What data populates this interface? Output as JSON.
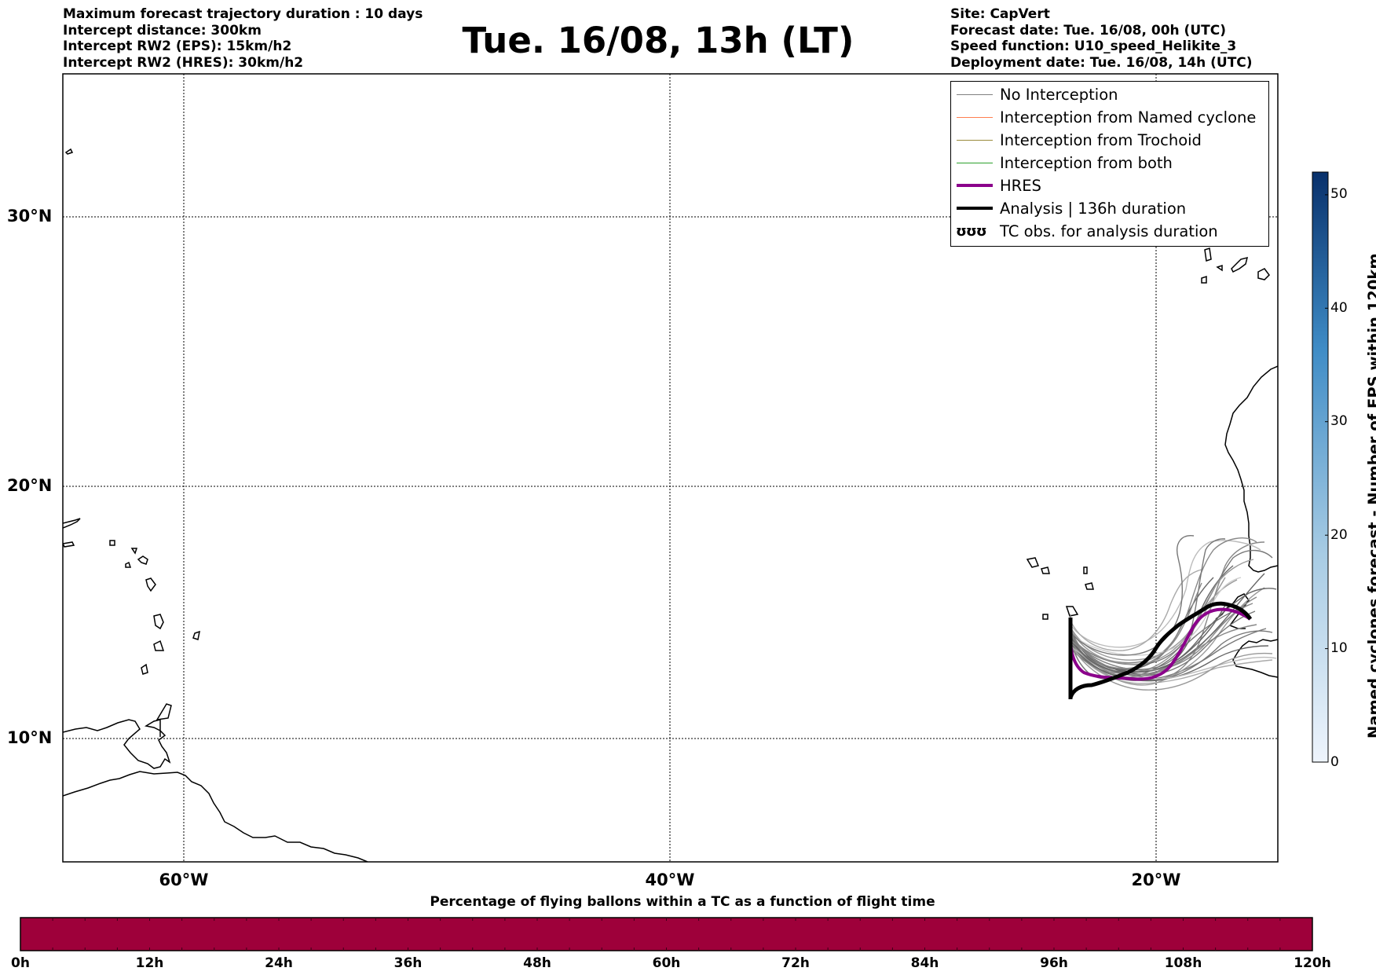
{
  "header_left": [
    "Maximum forecast trajectory duration : 10 days",
    "Intercept distance: 300km",
    "Intercept RW2 (EPS):  15km/h2",
    "Intercept RW2 (HRES): 30km/h2"
  ],
  "title": "Tue. 16/08, 13h (LT)",
  "header_right": [
    "Site: CapVert",
    "Forecast date: Tue. 16/08, 00h (UTC)",
    "Speed function: U10_speed_Helikite_3",
    "Deployment date: Tue. 16/08, 14h (UTC)"
  ],
  "map": {
    "lat_labels": [
      "30°N",
      "20°N",
      "10°N"
    ],
    "lon_labels": [
      "60°W",
      "40°W",
      "20°W"
    ],
    "lat_range": [
      5.4,
      34.7
    ],
    "lon_range": [
      -65,
      -15
    ],
    "grid": true
  },
  "legend": {
    "items": [
      {
        "label": "No Interception",
        "color": "#808080",
        "width": 1.5
      },
      {
        "label": "Interception from Named cyclone",
        "color": "#ff7f50",
        "width": 1.5
      },
      {
        "label": "Interception from Trochoid",
        "color": "#9a8a3c",
        "width": 1.5
      },
      {
        "label": "Interception from both",
        "color": "#2ca02c",
        "width": 1.5
      },
      {
        "label": "HRES",
        "color": "#8b008b",
        "width": 4
      },
      {
        "label": "Analysis | 136h duration",
        "color": "#000000",
        "width": 4.5
      },
      {
        "label": "TC obs. for analysis duration",
        "icon": "ʊʊʊ"
      }
    ]
  },
  "colorbar_right": {
    "label": "Named cyclones forecast - Number of EPS within 120km",
    "ticks": [
      "0",
      "10",
      "20",
      "30",
      "40",
      "50"
    ],
    "range": [
      0,
      52
    ],
    "color_low": "#eaf2fb",
    "color_high": "#08306b"
  },
  "colorbar_bottom": {
    "caption": "Percentage of flying ballons within a TC as a function of flight time",
    "ticks": [
      "0h",
      "12h",
      "24h",
      "36h",
      "48h",
      "60h",
      "72h",
      "84h",
      "96h",
      "108h",
      "120h"
    ],
    "fill_color": "#9e003a"
  }
}
